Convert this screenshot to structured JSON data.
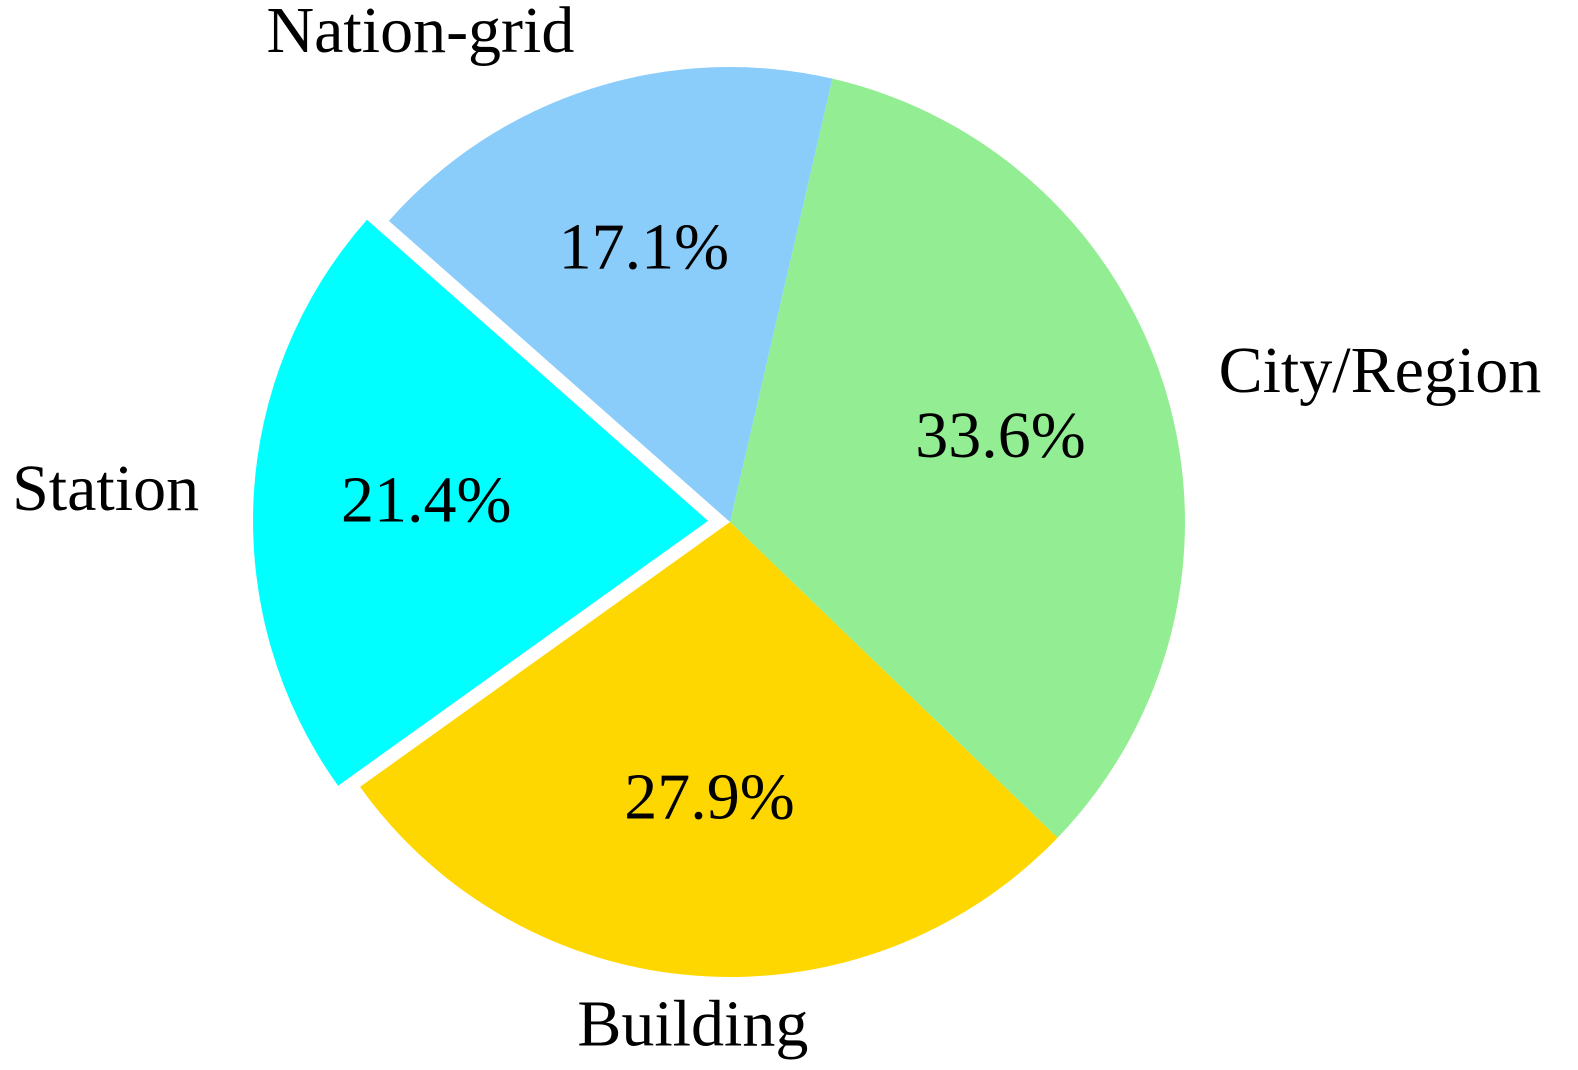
{
  "chart_data": {
    "type": "pie",
    "title": "",
    "slices": [
      {
        "label": "City/Region",
        "value": 33.6,
        "value_label": "33.6%",
        "color": "#93ee93",
        "exploded": false
      },
      {
        "label": "Building",
        "value": 27.9,
        "value_label": "27.9%",
        "color": "#ffd700",
        "exploded": false
      },
      {
        "label": "Station",
        "value": 21.4,
        "value_label": "21.4%",
        "color": "#00ffff",
        "exploded": true
      },
      {
        "label": "Nation-grid",
        "value": 17.1,
        "value_label": "17.1%",
        "color": "#8accfa",
        "exploded": false
      }
    ],
    "start_angle_deg": 77,
    "direction": "clockwise",
    "legend": "none"
  }
}
